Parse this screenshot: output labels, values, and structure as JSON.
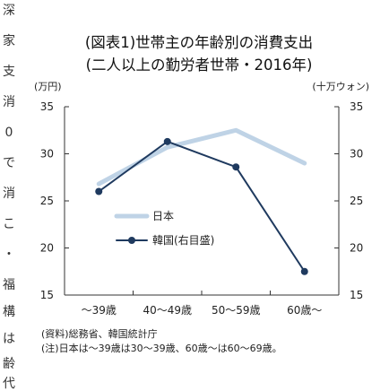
{
  "side_text": [
    "深",
    "家",
    "支",
    "消",
    "0",
    "で",
    "消",
    "こ",
    "・",
    "福",
    "構",
    "は",
    "齢",
    "代"
  ],
  "title_line1": "(図表1)世帯主の年齢別の消費支出",
  "title_line2": "(二人以上の勤労者世帯・2016年)",
  "notes": [
    "(資料)総務省、韓国統計庁",
    "(注)日本は～39歳は30～39歳、60歳～は60～69歳。"
  ],
  "chart_data": {
    "type": "line",
    "categories": [
      "～39歳",
      "40～49歳",
      "50～59歳",
      "60歳～"
    ],
    "y_left": {
      "unit": "(万円)",
      "ticks": [
        15,
        20,
        25,
        30,
        35
      ],
      "range": [
        15,
        35
      ]
    },
    "y_right": {
      "unit": "(十万ウォン)",
      "ticks": [
        15,
        20,
        25,
        30,
        35
      ],
      "range": [
        15,
        35
      ]
    },
    "grid": false,
    "legend_position": "center-left",
    "series": [
      {
        "name": "日本",
        "axis": "left",
        "color": "#bfd3e6",
        "marker": false,
        "values": [
          26.8,
          30.7,
          32.5,
          29.0
        ]
      },
      {
        "name": "韓国(右目盛)",
        "axis": "right",
        "color": "#1f3a5f",
        "marker": true,
        "values": [
          26.0,
          31.3,
          28.6,
          17.5
        ]
      }
    ]
  }
}
